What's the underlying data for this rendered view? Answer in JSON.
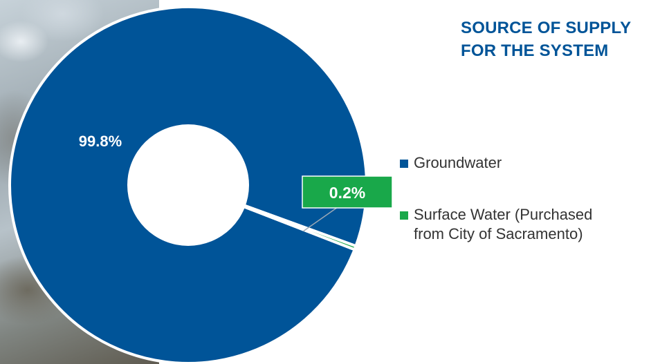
{
  "title": {
    "line1": "SOURCE OF SUPPLY",
    "line2": "FOR THE SYSTEM"
  },
  "colors": {
    "groundwater": "#005498",
    "surface_water": "#19a84a",
    "title": "#005498"
  },
  "legend": [
    {
      "label": "Groundwater"
    },
    {
      "label_line1": "Surface Water (Purchased",
      "label_line2": "from City of Sacramento)"
    }
  ],
  "chart_data": {
    "type": "pie",
    "variant": "donut",
    "categories": [
      "Groundwater",
      "Surface Water (Purchased from City of Sacramento)"
    ],
    "values": [
      99.8,
      0.2
    ],
    "unit": "%",
    "data_labels": [
      "99.8%",
      "0.2%"
    ],
    "legend_position": "right",
    "title": "SOURCE OF SUPPLY FOR THE SYSTEM"
  }
}
